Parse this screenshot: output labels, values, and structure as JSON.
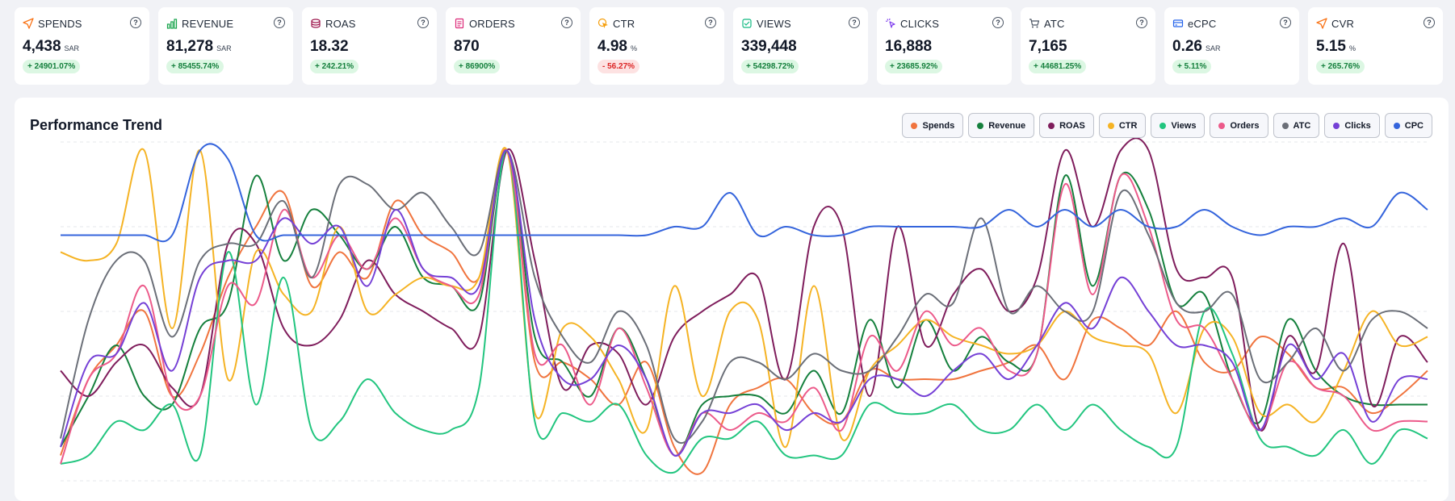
{
  "cards": [
    {
      "label": "SPENDS",
      "icon": "send-icon",
      "color": "#f97316",
      "value": "4,438",
      "unit": "SAR",
      "change": "+ 24901.07%",
      "trend": "up"
    },
    {
      "label": "REVENUE",
      "icon": "bar-chart-icon",
      "color": "#16a34a",
      "value": "81,278",
      "unit": "SAR",
      "change": "+ 85455.74%",
      "trend": "up"
    },
    {
      "label": "ROAS",
      "icon": "coins-icon",
      "color": "#9d174d",
      "value": "18.32",
      "unit": "",
      "change": "+ 242.21%",
      "trend": "up"
    },
    {
      "label": "ORDERS",
      "icon": "receipt-icon",
      "color": "#db2777",
      "value": "870",
      "unit": "",
      "change": "+ 86900%",
      "trend": "up"
    },
    {
      "label": "CTR",
      "icon": "cursor-click-icon",
      "color": "#f59e0b",
      "value": "4.98",
      "unit": "%",
      "change": "- 56.27%",
      "trend": "down"
    },
    {
      "label": "VIEWS",
      "icon": "eye-icon",
      "color": "#10b981",
      "value": "339,448",
      "unit": "",
      "change": "+ 54298.72%",
      "trend": "up"
    },
    {
      "label": "CLICKS",
      "icon": "pointer-icon",
      "color": "#7c3aed",
      "value": "16,888",
      "unit": "",
      "change": "+ 23685.92%",
      "trend": "up"
    },
    {
      "label": "ATC",
      "icon": "cart-icon",
      "color": "#4b5563",
      "value": "7,165",
      "unit": "",
      "change": "+ 44681.25%",
      "trend": "up"
    },
    {
      "label": "eCPC",
      "icon": "card-icon",
      "color": "#2563eb",
      "value": "0.26",
      "unit": "SAR",
      "change": "+ 5.11%",
      "trend": "up"
    },
    {
      "label": "CVR",
      "icon": "send-icon",
      "color": "#f97316",
      "value": "5.15",
      "unit": "%",
      "change": "+ 265.76%",
      "trend": "up"
    }
  ],
  "panel": {
    "title": "Performance Trend"
  },
  "chart_data": {
    "type": "line",
    "title": "Performance Trend",
    "xlabel": "",
    "ylabel": "",
    "ylim": [
      0,
      4
    ],
    "grid": true,
    "legend_position": "top-right",
    "series": [
      {
        "name": "Spends",
        "color": "#f0743e",
        "values": [
          0.3,
          1.2,
          1.6,
          2.0,
          1.0,
          1.5,
          2.4,
          3.0,
          3.4,
          2.3,
          2.7,
          2.4,
          3.3,
          2.9,
          2.7,
          2.4,
          3.9,
          1.4,
          1.4,
          1.2,
          0.9,
          1.4,
          0.4,
          0.1,
          0.9,
          1.1,
          1.2,
          0.8,
          0.7,
          1.3,
          1.2,
          1.2,
          1.2,
          1.3,
          1.4,
          1.6,
          1.2,
          1.9,
          1.8,
          1.6,
          2.0,
          1.4,
          1.3,
          1.7,
          1.5,
          1.1,
          1.1,
          0.8,
          1.0,
          1.3
        ]
      },
      {
        "name": "Revenue",
        "color": "#15803d",
        "values": [
          0.4,
          1.0,
          1.6,
          1.0,
          0.9,
          1.8,
          2.1,
          3.6,
          2.6,
          3.2,
          2.9,
          2.5,
          3.0,
          2.4,
          2.3,
          2.1,
          3.9,
          1.7,
          1.4,
          1.0,
          1.8,
          1.2,
          0.3,
          0.9,
          1.0,
          1.0,
          0.8,
          1.3,
          0.8,
          1.9,
          1.1,
          1.9,
          1.3,
          1.7,
          1.4,
          1.5,
          3.6,
          2.3,
          3.6,
          3.2,
          2.1,
          2.2,
          1.2,
          0.7,
          1.9,
          1.3,
          1.0,
          0.9,
          0.9,
          0.9
        ]
      },
      {
        "name": "ROAS",
        "color": "#7f1d5c",
        "values": [
          1.3,
          1.0,
          1.4,
          1.6,
          1.1,
          1.0,
          2.8,
          2.8,
          1.8,
          1.6,
          1.9,
          2.6,
          2.2,
          2.0,
          1.8,
          1.7,
          3.9,
          2.6,
          1.1,
          1.6,
          1.5,
          0.9,
          1.7,
          2.0,
          2.2,
          2.4,
          1.2,
          3.0,
          3.0,
          1.0,
          3.0,
          1.6,
          2.2,
          2.5,
          2.0,
          2.4,
          3.9,
          3.0,
          3.9,
          3.9,
          2.5,
          2.4,
          2.4,
          0.6,
          1.7,
          1.3,
          2.8,
          0.9,
          1.7,
          1.4
        ]
      },
      {
        "name": "CTR",
        "color": "#f5b324",
        "values": [
          2.7,
          2.6,
          2.8,
          3.9,
          1.8,
          3.9,
          1.2,
          2.7,
          2.2,
          2.0,
          3.0,
          2.0,
          2.2,
          2.4,
          2.3,
          2.4,
          3.9,
          0.8,
          1.8,
          1.7,
          1.2,
          0.6,
          2.3,
          1.0,
          2.0,
          1.9,
          0.4,
          2.3,
          0.5,
          1.3,
          1.6,
          1.9,
          1.7,
          1.6,
          1.5,
          1.6,
          2.0,
          1.7,
          1.6,
          1.5,
          0.8,
          1.8,
          1.7,
          0.8,
          0.9,
          0.7,
          1.3,
          2.0,
          1.6,
          1.7
        ]
      },
      {
        "name": "Views",
        "color": "#22c57f",
        "values": [
          0.2,
          0.3,
          0.7,
          0.6,
          0.9,
          0.3,
          2.7,
          0.9,
          2.4,
          0.6,
          0.7,
          1.2,
          0.8,
          0.6,
          0.6,
          1.1,
          3.9,
          0.7,
          0.8,
          0.7,
          0.9,
          0.3,
          0.1,
          0.5,
          0.5,
          0.7,
          0.3,
          0.3,
          0.3,
          0.9,
          0.8,
          0.8,
          0.9,
          0.6,
          0.6,
          0.9,
          0.6,
          0.9,
          0.6,
          0.4,
          0.4,
          2.0,
          1.5,
          0.5,
          0.4,
          0.3,
          0.6,
          0.2,
          0.6,
          0.5
        ]
      },
      {
        "name": "Orders",
        "color": "#ec5a8a",
        "values": [
          0.2,
          1.2,
          1.5,
          2.3,
          1.0,
          1.0,
          2.3,
          2.1,
          3.2,
          2.4,
          2.9,
          2.5,
          3.1,
          2.5,
          2.3,
          2.2,
          3.9,
          1.5,
          1.6,
          0.9,
          1.8,
          1.1,
          0.3,
          0.8,
          0.6,
          0.8,
          0.7,
          1.1,
          0.6,
          1.7,
          1.3,
          2.0,
          1.6,
          1.8,
          1.3,
          1.5,
          3.5,
          2.2,
          3.6,
          3.0,
          1.9,
          1.8,
          1.2,
          0.6,
          1.4,
          1.1,
          1.0,
          0.6,
          0.7,
          0.7
        ]
      },
      {
        "name": "ATC",
        "color": "#6b6f78",
        "values": [
          0.5,
          1.9,
          2.6,
          2.6,
          1.7,
          2.6,
          2.8,
          2.8,
          3.3,
          2.4,
          3.5,
          3.5,
          3.2,
          3.4,
          3.0,
          2.7,
          3.9,
          2.4,
          1.7,
          1.4,
          2.0,
          1.6,
          0.5,
          0.7,
          1.4,
          1.4,
          1.2,
          1.5,
          1.3,
          1.3,
          1.7,
          2.2,
          2.1,
          3.1,
          2.0,
          2.3,
          2.0,
          2.0,
          3.4,
          2.9,
          2.1,
          2.0,
          2.2,
          1.2,
          1.4,
          1.8,
          1.3,
          1.9,
          2.0,
          1.8
        ]
      },
      {
        "name": "Clicks",
        "color": "#7540d6",
        "values": [
          0.4,
          1.4,
          1.5,
          2.1,
          1.3,
          2.4,
          2.6,
          2.6,
          3.1,
          2.8,
          3.0,
          2.3,
          3.2,
          2.5,
          2.4,
          2.3,
          3.9,
          1.9,
          1.2,
          1.2,
          1.6,
          1.2,
          0.3,
          0.8,
          0.8,
          0.9,
          0.6,
          0.8,
          0.7,
          1.2,
          1.2,
          1.0,
          1.3,
          1.5,
          1.2,
          1.6,
          2.1,
          1.8,
          2.4,
          2.0,
          1.6,
          1.6,
          1.4,
          0.6,
          1.6,
          1.2,
          1.5,
          0.7,
          1.2,
          1.2
        ]
      },
      {
        "name": "CPC",
        "color": "#3464dc",
        "values": [
          2.9,
          2.9,
          2.9,
          2.9,
          2.9,
          3.9,
          3.8,
          2.9,
          2.9,
          2.9,
          2.9,
          2.9,
          2.9,
          2.9,
          2.9,
          2.9,
          2.9,
          2.9,
          2.9,
          2.9,
          2.9,
          2.9,
          3.0,
          3.0,
          3.4,
          2.9,
          3.0,
          2.9,
          2.9,
          3.0,
          3.0,
          3.0,
          3.0,
          3.0,
          3.2,
          3.0,
          3.2,
          3.0,
          3.2,
          3.0,
          3.0,
          3.2,
          3.0,
          2.9,
          3.0,
          3.0,
          3.1,
          3.0,
          3.4,
          3.2
        ]
      }
    ]
  }
}
